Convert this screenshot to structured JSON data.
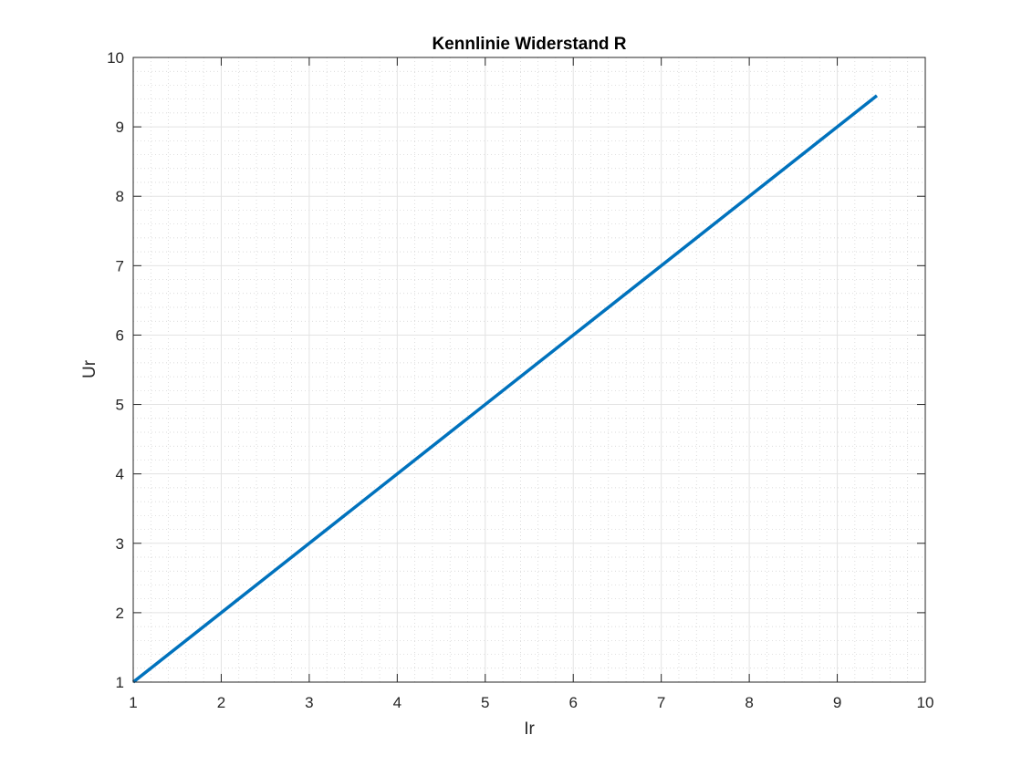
{
  "chart_data": {
    "type": "line",
    "title": "Kennlinie Widerstand R",
    "xlabel": "Ir",
    "ylabel": "Ur",
    "xlim": [
      1,
      10
    ],
    "ylim": [
      1,
      10
    ],
    "xticks": [
      "1",
      "2",
      "3",
      "4",
      "5",
      "6",
      "7",
      "8",
      "9",
      "10"
    ],
    "yticks": [
      "1",
      "2",
      "3",
      "4",
      "5",
      "6",
      "7",
      "8",
      "9",
      "10"
    ],
    "grid": true,
    "minor_grid": true,
    "legend": "none",
    "series": [
      {
        "color": "#0072BD",
        "x": [
          1,
          9.45
        ],
        "y": [
          1,
          9.45
        ]
      }
    ]
  }
}
